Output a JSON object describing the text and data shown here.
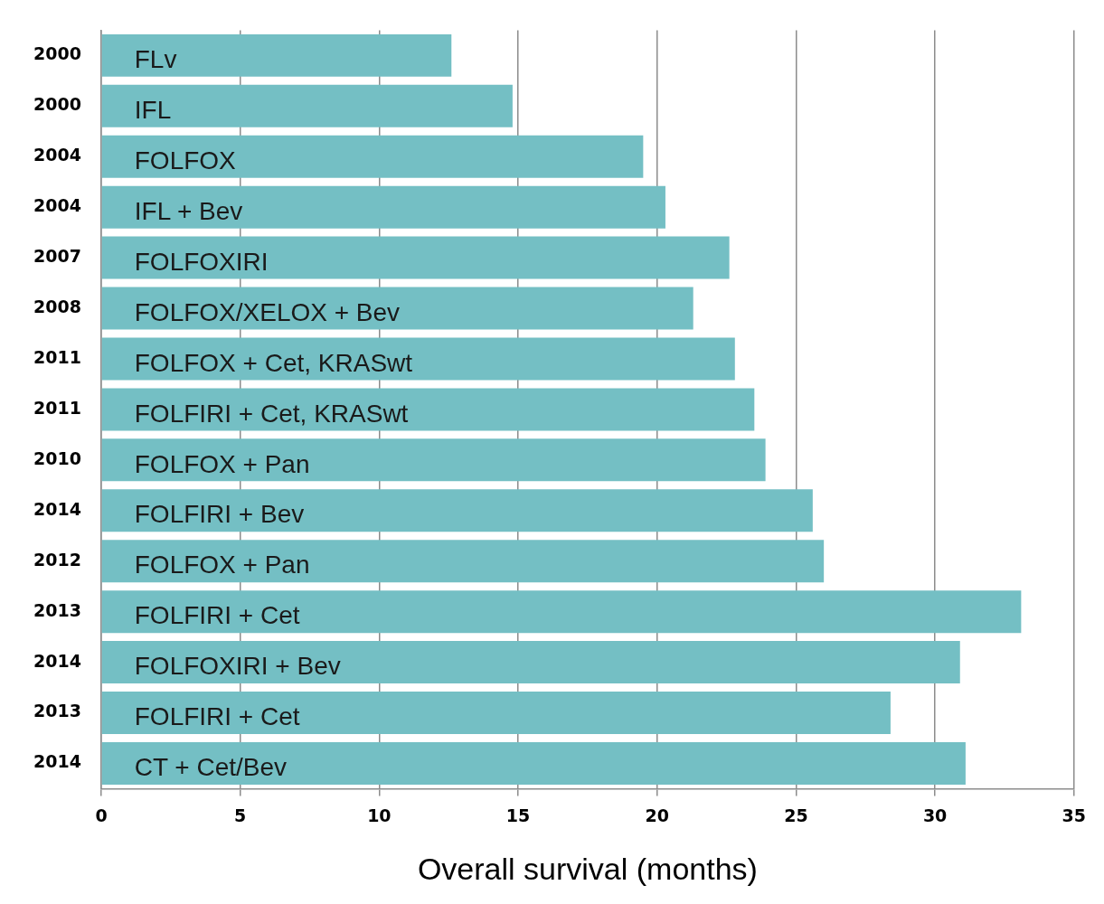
{
  "chart_data": {
    "type": "bar",
    "orientation": "horizontal",
    "xlabel": "Overall survival (months)",
    "categories": [
      "2000",
      "2000",
      "2004",
      "2004",
      "2007",
      "2008",
      "2011",
      "2011",
      "2010",
      "2014",
      "2012",
      "2013",
      "2014",
      "2013",
      "2014"
    ],
    "values": [
      12.6,
      14.8,
      19.5,
      20.3,
      22.6,
      21.3,
      22.8,
      23.5,
      23.9,
      25.6,
      26.0,
      33.1,
      30.9,
      28.4,
      31.1
    ],
    "value_labels": [
      "FLv",
      "IFL",
      "FOLFOX",
      "IFL + Bev",
      "FOLFOXIRI",
      "FOLFOX/XELOX + Bev",
      "FOLFOX + Cet, KRASwt",
      "FOLFIRI + Cet, KRASwt",
      "FOLFOX + Pan",
      "FOLFIRI + Bev",
      "FOLFOX + Pan",
      "FOLFIRI + Cet",
      "FOLFOXIRI + Bev",
      "FOLFIRI + Cet",
      "CT + Cet/Bev"
    ],
    "color": "#74bfc4",
    "xlim": [
      0,
      35
    ],
    "xticks": [
      0,
      5,
      10,
      15,
      20,
      25,
      30,
      35
    ],
    "grid": "x",
    "legend": false
  }
}
